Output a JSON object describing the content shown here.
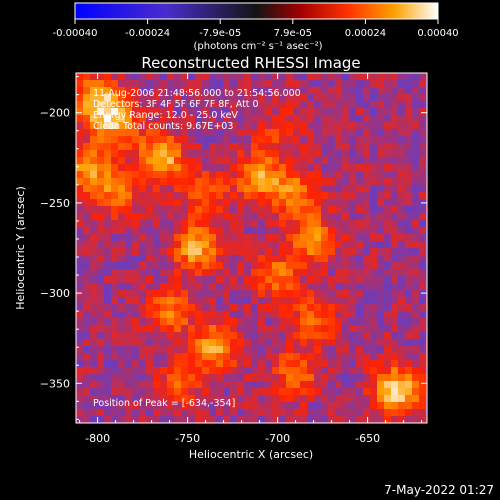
{
  "colorbar": {
    "tick_labels": [
      "-0.00040",
      "-0.00024",
      "-7.9e-05",
      "7.9e-05",
      "0.00024",
      "0.00040"
    ],
    "units": "(photons cm⁻² s⁻¹ asec⁻²)",
    "vmin": -0.0004,
    "vmax": 0.0004
  },
  "overlay": {
    "time_range": "11-Aug-2006 21:48:56.000 to 21:54:56.000",
    "detectors": "Detectors: 3F 4F 5F 6F 7F 8F, Att 0",
    "energy": "Energy Range: 12.0 - 25.0 keV",
    "method": "Clean    Total counts: 9.67E+03",
    "peak": "Position of Peak = [-634,-354]"
  },
  "footer": {
    "timestamp": "7-May-2022 01:27"
  },
  "chart_data": {
    "type": "heatmap",
    "title": "Reconstructed RHESSI Image",
    "xlabel": "Heliocentric X (arcsec)",
    "ylabel": "Heliocentric Y (arcsec)",
    "xlim": [
      -812,
      -617
    ],
    "ylim": [
      -372,
      -178
    ],
    "x_ticks": [
      -800,
      -750,
      -700,
      -650
    ],
    "y_ticks": [
      -200,
      -250,
      -300,
      -350
    ],
    "x_tick_labels": [
      "-800",
      "-750",
      "-700",
      "-650"
    ],
    "y_tick_labels": [
      "−200",
      "−250",
      "−300",
      "−350"
    ],
    "peak": [
      -634,
      -354
    ],
    "colormap": [
      "#0000ff",
      "#6a3cc0",
      "#ff2200",
      "#ffa000",
      "#ffffff"
    ],
    "sources": [
      {
        "x": -800,
        "y": -193,
        "value": 0.00034
      },
      {
        "x": -790,
        "y": -205,
        "value": 0.0003
      },
      {
        "x": -805,
        "y": -230,
        "value": 0.00028
      },
      {
        "x": -765,
        "y": -225,
        "value": 0.00036
      },
      {
        "x": -740,
        "y": -245,
        "value": 0.0002
      },
      {
        "x": -790,
        "y": -245,
        "value": 0.00022
      },
      {
        "x": -710,
        "y": -235,
        "value": 0.0003
      },
      {
        "x": -690,
        "y": -245,
        "value": 0.00025
      },
      {
        "x": -745,
        "y": -275,
        "value": 0.00032
      },
      {
        "x": -700,
        "y": -290,
        "value": 0.00022
      },
      {
        "x": -680,
        "y": -270,
        "value": 0.00026
      },
      {
        "x": -680,
        "y": -315,
        "value": 0.0002
      },
      {
        "x": -760,
        "y": -310,
        "value": 0.00024
      },
      {
        "x": -735,
        "y": -330,
        "value": 0.0003
      },
      {
        "x": -690,
        "y": -345,
        "value": 0.00022
      },
      {
        "x": -755,
        "y": -350,
        "value": 0.00018
      },
      {
        "x": -634,
        "y": -354,
        "value": 0.0004
      },
      {
        "x": -700,
        "y": -210,
        "value": 0.00012
      }
    ]
  }
}
